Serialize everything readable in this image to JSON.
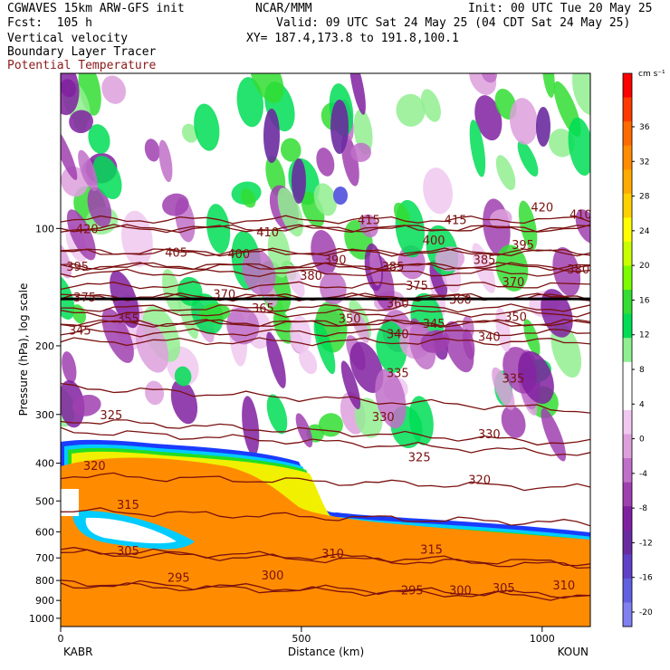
{
  "header": {
    "title": "CGWAVES 15km ARW-GFS init",
    "forecast": "Fcst:  105 h",
    "field1": "Vertical velocity",
    "field2": "Boundary Layer Tracer",
    "field3": "Potential Temperature",
    "center": "NCAR/MMM",
    "init": "Init: 00 UTC Tue 20 May 25",
    "valid": "Valid: 09 UTC Sat 24 May 25 (04 CDT Sat 24 May 25)",
    "xy": "XY= 187.4,173.8 to 191.8,100.1"
  },
  "colors": {
    "theta_contour": "#7a1010",
    "tracer": "#ff8c00",
    "tracer_edge_yellow": "#f0f000",
    "tracer_edge_green": "#22dd22",
    "tracer_edge_cyan": "#00ccff",
    "tracer_edge_blue": "#1a3cff"
  },
  "chart_data": {
    "type": "heatmap",
    "xlabel": "Distance (km)",
    "ylabel": "Pressure (hPa), log scale",
    "x_ticks": [
      0,
      500,
      1000
    ],
    "y_ticks": [
      100,
      200,
      300,
      400,
      500,
      600,
      700,
      800,
      900,
      1000
    ],
    "xlim": [
      0,
      1100
    ],
    "ylim": [
      1050,
      40
    ],
    "y_scale": "log",
    "left_endpoint": "KABR",
    "right_endpoint": "KOUN",
    "colorbar": {
      "units": "cm s⁻¹",
      "tick_labels": [
        36,
        32,
        28,
        24,
        20,
        16,
        12,
        8,
        4,
        0,
        -4,
        -8,
        -12,
        -16,
        -20
      ],
      "colors": [
        "#ff0000",
        "#ff3a00",
        "#ff6a00",
        "#ff8c00",
        "#ffaa00",
        "#ffd000",
        "#ffff00",
        "#c8ff00",
        "#7cfc00",
        "#33dd33",
        "#00dd55",
        "#90f090",
        "#ffffff",
        "#ffffff",
        "#f0c8f0",
        "#dda0dd",
        "#c070c8",
        "#a040b0",
        "#8020a0",
        "#6a2ba0",
        "#6040c8",
        "#6060e0",
        "#8080f0"
      ]
    },
    "theta_contours": [
      {
        "label": "420",
        "p": 100
      },
      {
        "label": "410",
        "p": 100
      },
      {
        "label": "415",
        "p": 95
      },
      {
        "label": "400",
        "p": 115
      },
      {
        "label": "405",
        "p": 115
      },
      {
        "label": "395",
        "p": 125
      },
      {
        "label": "390",
        "p": 125
      },
      {
        "label": "385",
        "p": 130
      },
      {
        "label": "380",
        "p": 140
      },
      {
        "label": "375",
        "p": 150
      },
      {
        "label": "370",
        "p": 150
      },
      {
        "label": "365",
        "p": 165
      },
      {
        "label": "360",
        "p": 160
      },
      {
        "label": "355",
        "p": 175
      },
      {
        "label": "350",
        "p": 175
      },
      {
        "label": "345",
        "p": 185
      },
      {
        "label": "340",
        "p": 195
      },
      {
        "label": "335",
        "p": 255
      },
      {
        "label": "330",
        "p": 330
      },
      {
        "label": "325",
        "p": 310
      },
      {
        "label": "320",
        "p": 430
      },
      {
        "label": "315",
        "p": 530
      },
      {
        "label": "310",
        "p": 680
      },
      {
        "label": "305",
        "p": 670
      },
      {
        "label": "300",
        "p": 810
      },
      {
        "label": "295",
        "p": 820
      }
    ],
    "contour_labels": [
      {
        "t": "420",
        "x": 55,
        "p": 100
      },
      {
        "t": "410",
        "x": 430,
        "p": 102
      },
      {
        "t": "415",
        "x": 640,
        "p": 95
      },
      {
        "t": "415",
        "x": 820,
        "p": 95
      },
      {
        "t": "420",
        "x": 1000,
        "p": 88
      },
      {
        "t": "410",
        "x": 1080,
        "p": 92
      },
      {
        "t": "405",
        "x": 240,
        "p": 115
      },
      {
        "t": "400",
        "x": 370,
        "p": 116
      },
      {
        "t": "400",
        "x": 775,
        "p": 107
      },
      {
        "t": "395",
        "x": 960,
        "p": 110
      },
      {
        "t": "395",
        "x": 35,
        "p": 125
      },
      {
        "t": "390",
        "x": 570,
        "p": 120
      },
      {
        "t": "385",
        "x": 690,
        "p": 125
      },
      {
        "t": "385",
        "x": 880,
        "p": 120
      },
      {
        "t": "380",
        "x": 520,
        "p": 132
      },
      {
        "t": "380",
        "x": 1075,
        "p": 127
      },
      {
        "t": "375",
        "x": 740,
        "p": 140
      },
      {
        "t": "370",
        "x": 940,
        "p": 137
      },
      {
        "t": "370",
        "x": 340,
        "p": 147
      },
      {
        "t": "375",
        "x": 50,
        "p": 150
      },
      {
        "t": "360",
        "x": 700,
        "p": 155
      },
      {
        "t": "360",
        "x": 830,
        "p": 152
      },
      {
        "t": "365",
        "x": 420,
        "p": 160
      },
      {
        "t": "355",
        "x": 140,
        "p": 170
      },
      {
        "t": "350",
        "x": 600,
        "p": 170
      },
      {
        "t": "350",
        "x": 945,
        "p": 168
      },
      {
        "t": "345",
        "x": 40,
        "p": 182
      },
      {
        "t": "345",
        "x": 775,
        "p": 175
      },
      {
        "t": "340",
        "x": 700,
        "p": 186
      },
      {
        "t": "340",
        "x": 890,
        "p": 189
      },
      {
        "t": "335",
        "x": 700,
        "p": 234
      },
      {
        "t": "335",
        "x": 940,
        "p": 242
      },
      {
        "t": "325",
        "x": 105,
        "p": 300
      },
      {
        "t": "330",
        "x": 670,
        "p": 304
      },
      {
        "t": "330",
        "x": 890,
        "p": 336
      },
      {
        "t": "325",
        "x": 745,
        "p": 385
      },
      {
        "t": "320",
        "x": 70,
        "p": 405
      },
      {
        "t": "320",
        "x": 870,
        "p": 440
      },
      {
        "t": "315",
        "x": 140,
        "p": 510
      },
      {
        "t": "315",
        "x": 770,
        "p": 665
      },
      {
        "t": "305",
        "x": 140,
        "p": 670
      },
      {
        "t": "310",
        "x": 565,
        "p": 680
      },
      {
        "t": "310",
        "x": 1045,
        "p": 820
      },
      {
        "t": "300",
        "x": 440,
        "p": 775
      },
      {
        "t": "305",
        "x": 920,
        "p": 835
      },
      {
        "t": "295",
        "x": 245,
        "p": 785
      },
      {
        "t": "295",
        "x": 730,
        "p": 845
      },
      {
        "t": "300",
        "x": 830,
        "p": 845
      }
    ]
  }
}
